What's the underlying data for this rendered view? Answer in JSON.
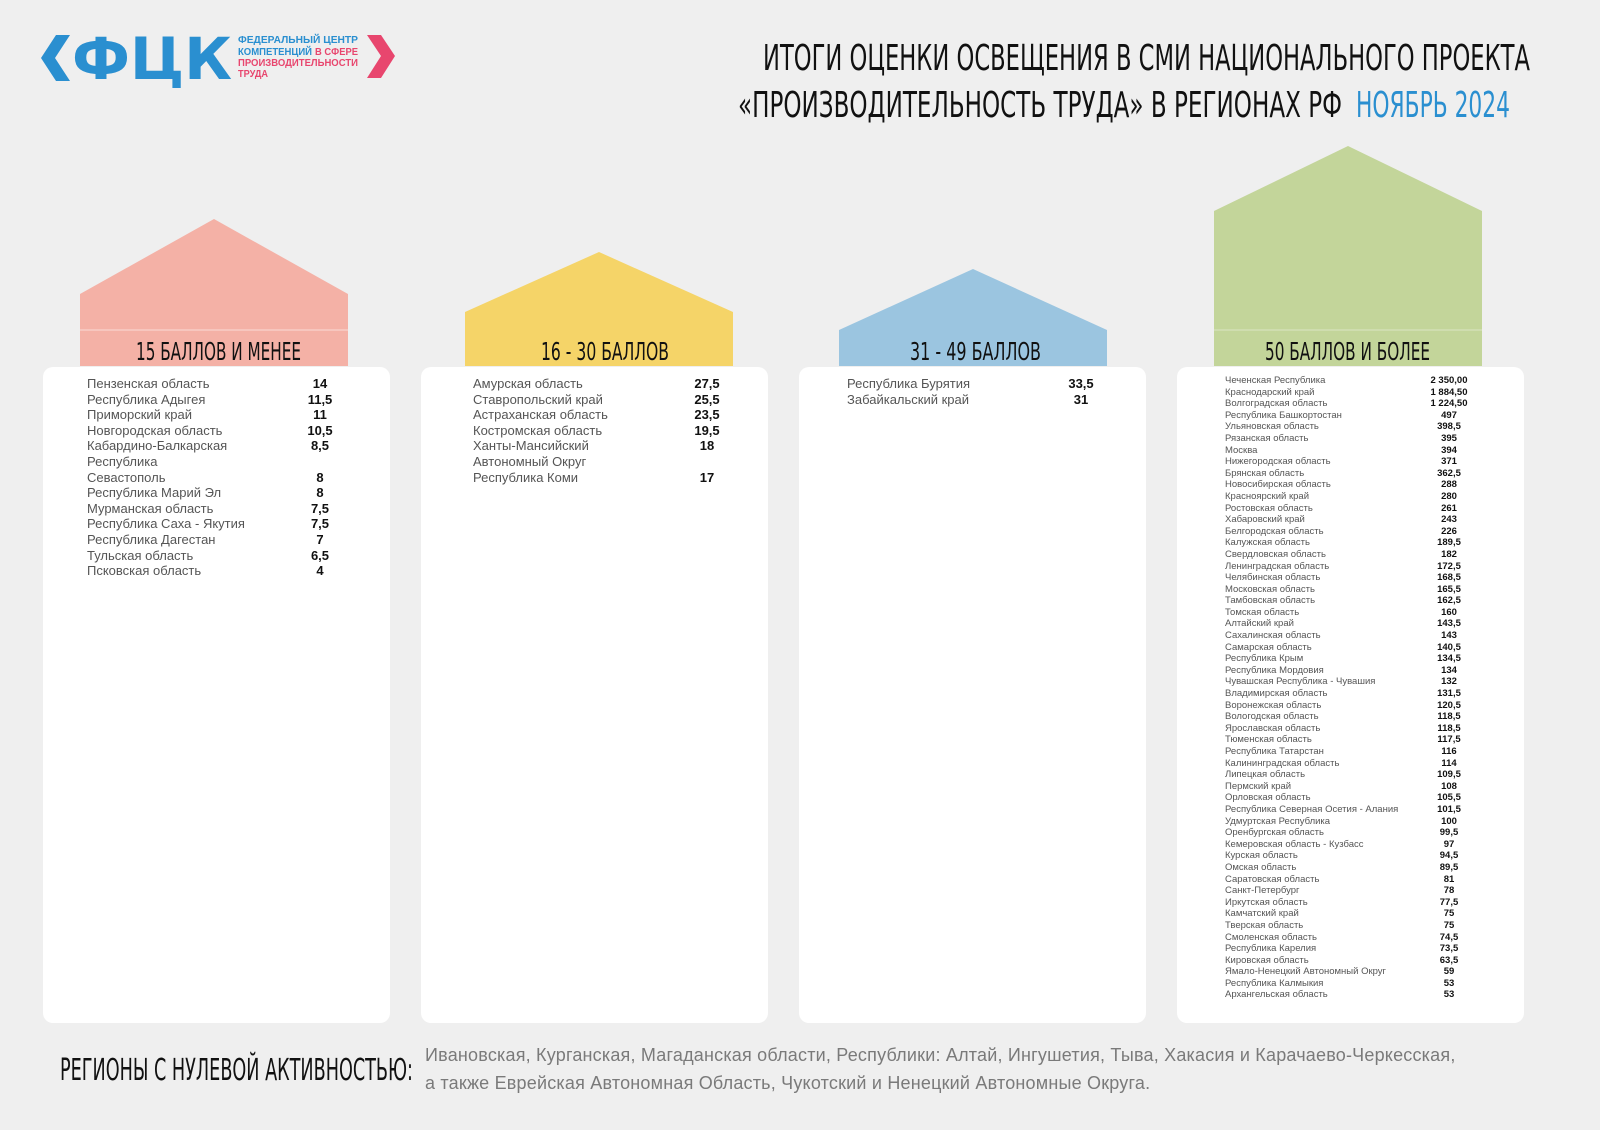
{
  "logo": {
    "acronym": "ФЦК",
    "line1": "ФЕДЕРАЛЬНЫЙ ЦЕНТР",
    "line2a": "КОМПЕТЕНЦИЙ",
    "line2b": "В СФЕРЕ",
    "line3": "ПРОИЗВОДИТЕЛЬНОСТИ",
    "line4": "ТРУДА"
  },
  "header": {
    "title_line1": "ИТОГИ ОЦЕНКИ ОСВЕЩЕНИЯ В СМИ НАЦИОНАЛЬНОГО ПРОЕКТА",
    "title_line2": "«ПРОИЗВОДИТЕЛЬНОСТЬ ТРУДА» В РЕГИОНАХ РФ",
    "period": "НОЯБРЬ 2024"
  },
  "groups": [
    {
      "heading": "15 БАЛЛОВ И МЕНЕЕ",
      "rows": [
        [
          "Пензенская область",
          "14"
        ],
        [
          "Республика Адыгея",
          "11,5"
        ],
        [
          "Приморский край",
          "11"
        ],
        [
          "Новгородская область",
          "10,5"
        ],
        [
          "Кабардино-Балкарская Республика",
          "8,5"
        ],
        [
          "Севастополь",
          "8"
        ],
        [
          "Республика Марий Эл",
          "8"
        ],
        [
          "Мурманская область",
          "7,5"
        ],
        [
          "Республика Саха - Якутия",
          "7,5"
        ],
        [
          "Республика Дагестан",
          "7"
        ],
        [
          "Тульская область",
          "6,5"
        ],
        [
          "Псковская область",
          "4"
        ]
      ]
    },
    {
      "heading": "16 - 30 БАЛЛОВ",
      "rows": [
        [
          "Амурская область",
          "27,5"
        ],
        [
          "Ставропольский край",
          "25,5"
        ],
        [
          "Астраханская область",
          "23,5"
        ],
        [
          "Костромская область",
          "19,5"
        ],
        [
          "Ханты-Мансийский Автономный Округ",
          "18"
        ],
        [
          "Республика Коми",
          "17"
        ]
      ]
    },
    {
      "heading": "31 - 49 БАЛЛОВ",
      "rows": [
        [
          "Республика Бурятия",
          "33,5"
        ],
        [
          "Забайкальский край",
          "31"
        ]
      ]
    },
    {
      "heading": "50 БАЛЛОВ И БОЛЕЕ",
      "rows": [
        [
          "Чеченская Республика",
          "2 350,00"
        ],
        [
          "Краснодарский край",
          "1 884,50"
        ],
        [
          "Волгоградская область",
          "1 224,50"
        ],
        [
          "Республика Башкортостан",
          "497"
        ],
        [
          "Ульяновская область",
          "398,5"
        ],
        [
          "Рязанская область",
          "395"
        ],
        [
          "Москва",
          "394"
        ],
        [
          "Нижегородская область",
          "371"
        ],
        [
          "Брянская область",
          "362,5"
        ],
        [
          "Новосибирская область",
          "288"
        ],
        [
          "Красноярский край",
          "280"
        ],
        [
          "Ростовская область",
          "261"
        ],
        [
          "Хабаровский край",
          "243"
        ],
        [
          "Белгородская область",
          "226"
        ],
        [
          "Калужская область",
          "189,5"
        ],
        [
          "Свердловская область",
          "182"
        ],
        [
          "Ленинградская область",
          "172,5"
        ],
        [
          "Челябинская область",
          "168,5"
        ],
        [
          "Московская область",
          "165,5"
        ],
        [
          "Тамбовская область",
          "162,5"
        ],
        [
          "Томская область",
          "160"
        ],
        [
          "Алтайский край",
          "143,5"
        ],
        [
          "Сахалинская область",
          "143"
        ],
        [
          "Самарская область",
          "140,5"
        ],
        [
          "Республика Крым",
          "134,5"
        ],
        [
          "Республика Мордовия",
          "134"
        ],
        [
          "Чувашская Республика - Чувашия",
          "132"
        ],
        [
          "Владимирская область",
          "131,5"
        ],
        [
          "Воронежская область",
          "120,5"
        ],
        [
          "Вологодская область",
          "118,5"
        ],
        [
          "Ярославская область",
          "118,5"
        ],
        [
          "Тюменская область",
          "117,5"
        ],
        [
          "Республика Татарстан",
          "116"
        ],
        [
          "Калининградская область",
          "114"
        ],
        [
          "Липецкая область",
          "109,5"
        ],
        [
          "Пермский край",
          "108"
        ],
        [
          "Орловская область",
          "105,5"
        ],
        [
          "Республика Северная Осетия - Алания",
          "101,5"
        ],
        [
          "Удмуртская Республика",
          "100"
        ],
        [
          "Оренбургская область",
          "99,5"
        ],
        [
          "Кемеровская область - Кузбасс",
          "97"
        ],
        [
          "Курская область",
          "94,5"
        ],
        [
          "Омская область",
          "89,5"
        ],
        [
          "Саратовская область",
          "81"
        ],
        [
          "Санкт-Петербург",
          "78"
        ],
        [
          "Иркутская область",
          "77,5"
        ],
        [
          "Камчатский край",
          "75"
        ],
        [
          "Тверская область",
          "75"
        ],
        [
          "Смоленская область",
          "74,5"
        ],
        [
          "Республика Карелия",
          "73,5"
        ],
        [
          "Кировская область",
          "63,5"
        ],
        [
          "Ямало-Ненецкий Автономный Округ",
          "59"
        ],
        [
          "Республика Калмыкия",
          "53"
        ],
        [
          "Архангельская область",
          "53"
        ]
      ]
    }
  ],
  "footer": {
    "label": "РЕГИОНЫ С НУЛЕВОЙ АКТИВНОСТЬЮ:",
    "line1": "Ивановская, Курганская, Магаданская области, Республики: Алтай, Ингушетия, Тыва, Хакасия и Карачаево-Черкесская,",
    "line2": "а также Еврейская Автономная Область, Чукотский и Ненецкий Автономные Округа."
  }
}
